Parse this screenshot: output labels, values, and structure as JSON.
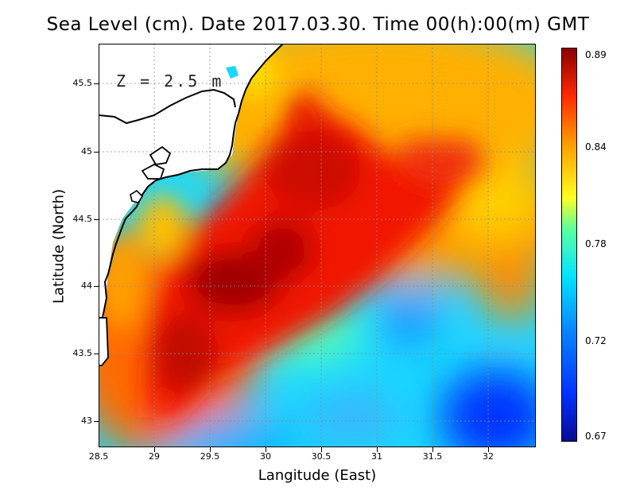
{
  "title": "Sea Level (cm). Date 2017.03.30. Time 00(h):00(m) GMT",
  "annotation": "Z = 2.5 m",
  "map": {
    "xlabel": "Langitude (East)",
    "ylabel": "Latitude (North)",
    "x_ticks": [
      "28.5",
      "29",
      "29.5",
      "30",
      "30.5",
      "31",
      "31.5",
      "32"
    ],
    "y_ticks": [
      "45.5",
      "45",
      "44.5",
      "44",
      "43.5",
      "43"
    ],
    "x_range": [
      28.5,
      32.45
    ],
    "y_range": [
      42.8,
      45.8
    ]
  },
  "colorbar": {
    "labels": [
      "0.89",
      "0.84",
      "0.78",
      "0.72",
      "0.67"
    ],
    "min": 0.67,
    "max": 0.89,
    "colors": [
      "#0c0a96",
      "#0033ff",
      "#0a84ff",
      "#00e5ff",
      "#5cffa0",
      "#ffff1e",
      "#ff9a00",
      "#ff2a00",
      "#8a0000"
    ]
  }
}
